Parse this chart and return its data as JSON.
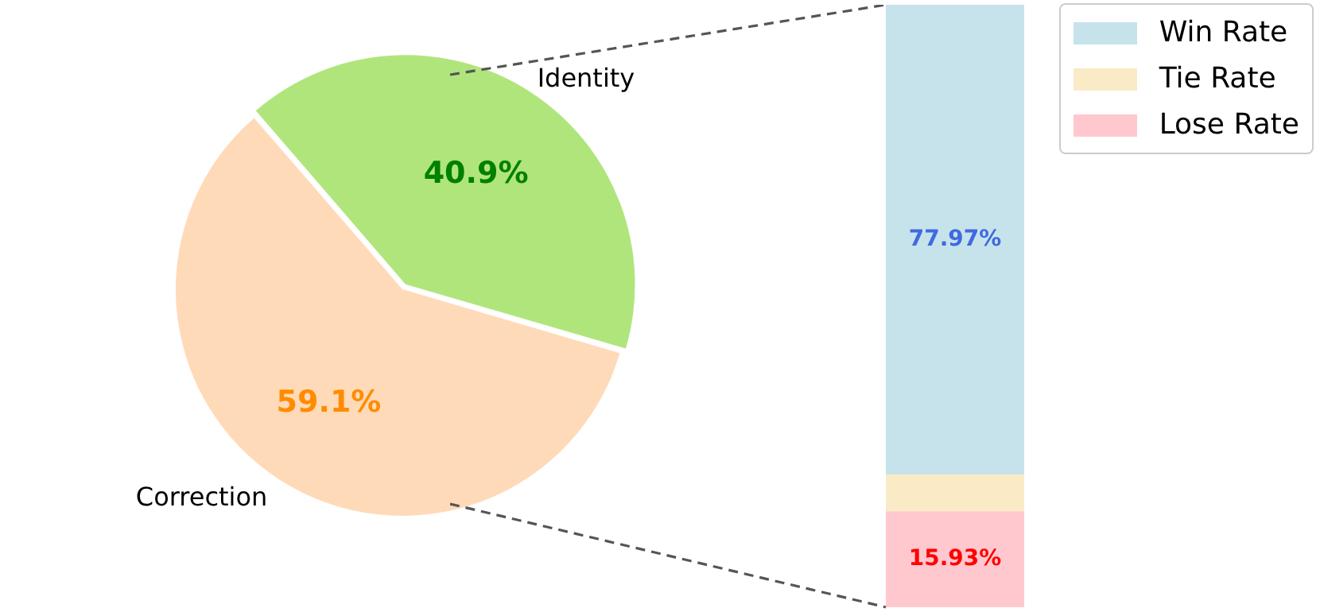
{
  "chart_data": [
    {
      "type": "pie",
      "categories": [
        "Correction",
        "Identity"
      ],
      "values": [
        59.1,
        40.9
      ],
      "colors": [
        "#ffdab9",
        "#b0e57c"
      ],
      "value_labels": [
        "59.1%",
        "40.9%"
      ],
      "legend": false
    },
    {
      "type": "bar",
      "stacked": true,
      "categories": [
        null
      ],
      "legend": "top right",
      "series": [
        {
          "name": "Lose Rate",
          "color": "#ffc8cf",
          "values": [
            15.93
          ],
          "value_labels": [
            "15.93%"
          ]
        },
        {
          "name": "Tie Rate",
          "color": "#faebc6",
          "values": [
            6.1
          ],
          "value_labels": [
            null
          ]
        },
        {
          "name": "Win Rate",
          "color": "#c6e3ec",
          "values": [
            77.97
          ],
          "value_labels": [
            "77.97%"
          ]
        }
      ]
    }
  ]
}
